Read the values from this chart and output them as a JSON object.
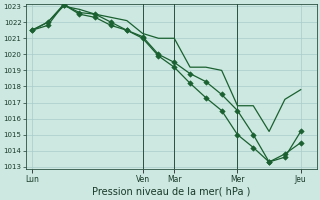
{
  "title": "",
  "xlabel": "Pression niveau de la mer( hPa )",
  "background_color": "#cce8e0",
  "grid_color": "#aacccc",
  "line_color": "#1a6030",
  "vline_color": "#2a5040",
  "ylim": [
    1013,
    1023
  ],
  "yticks": [
    1013,
    1014,
    1015,
    1016,
    1017,
    1018,
    1019,
    1020,
    1021,
    1022,
    1023
  ],
  "xtick_labels": [
    "Lun",
    "Ven",
    "Mar",
    "Mer",
    "Jeu"
  ],
  "xtick_positions": [
    0,
    35,
    45,
    65,
    85
  ],
  "xlim": [
    -2,
    90
  ],
  "vlines_x": [
    35,
    45,
    65
  ],
  "line1_x": [
    0,
    5,
    10,
    15,
    20,
    25,
    30,
    35,
    40,
    45,
    50,
    55,
    60,
    65,
    70,
    75,
    80,
    85
  ],
  "line1_y": [
    1021.5,
    1022.0,
    1023.0,
    1022.8,
    1022.5,
    1022.3,
    1022.1,
    1021.3,
    1021.0,
    1021.0,
    1019.2,
    1019.2,
    1019.0,
    1016.8,
    1016.8,
    1015.2,
    1017.2,
    1017.8
  ],
  "line2_x": [
    0,
    5,
    10,
    15,
    20,
    25,
    30,
    35,
    40,
    45,
    50,
    55,
    60,
    65,
    70,
    75,
    80,
    85
  ],
  "line2_y": [
    1021.5,
    1022.0,
    1023.1,
    1022.6,
    1022.5,
    1022.0,
    1021.5,
    1021.1,
    1020.0,
    1019.5,
    1018.8,
    1018.3,
    1017.5,
    1016.5,
    1015.0,
    1013.3,
    1013.6,
    1015.2
  ],
  "line3_x": [
    0,
    5,
    10,
    15,
    20,
    25,
    30,
    35,
    40,
    45,
    50,
    55,
    60,
    65,
    70,
    75,
    80,
    85
  ],
  "line3_y": [
    1021.5,
    1021.8,
    1023.1,
    1022.5,
    1022.3,
    1021.8,
    1021.5,
    1021.0,
    1019.9,
    1019.2,
    1018.2,
    1017.3,
    1016.5,
    1015.0,
    1014.2,
    1013.3,
    1013.8,
    1014.5
  ],
  "figsize": [
    3.2,
    2.0
  ],
  "dpi": 100
}
